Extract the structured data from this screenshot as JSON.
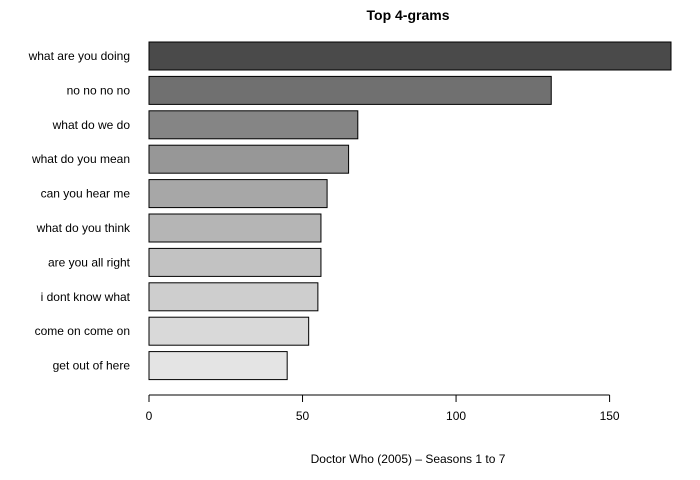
{
  "chart_data": {
    "type": "bar",
    "orientation": "horizontal",
    "title": "Top 4-grams",
    "xlabel": "Doctor Who (2005) – Seasons 1 to 7",
    "ylabel": "",
    "categories": [
      "what are you doing",
      "no no no no",
      "what do we do",
      "what do you mean",
      "can you hear me",
      "what do you think",
      "are you all right",
      "i dont know what",
      "come on come on",
      "get out of here"
    ],
    "values": [
      170,
      131,
      68,
      65,
      58,
      56,
      56,
      55,
      52,
      45
    ],
    "colors": [
      "#4a4a4a",
      "#707070",
      "#858585",
      "#979797",
      "#a7a7a7",
      "#b5b5b5",
      "#c2c2c2",
      "#cecece",
      "#d9d9d9",
      "#e4e4e4"
    ],
    "xlim": [
      0,
      170
    ],
    "xticks": [
      0,
      50,
      100,
      150
    ],
    "grid": false,
    "legend": "none"
  }
}
